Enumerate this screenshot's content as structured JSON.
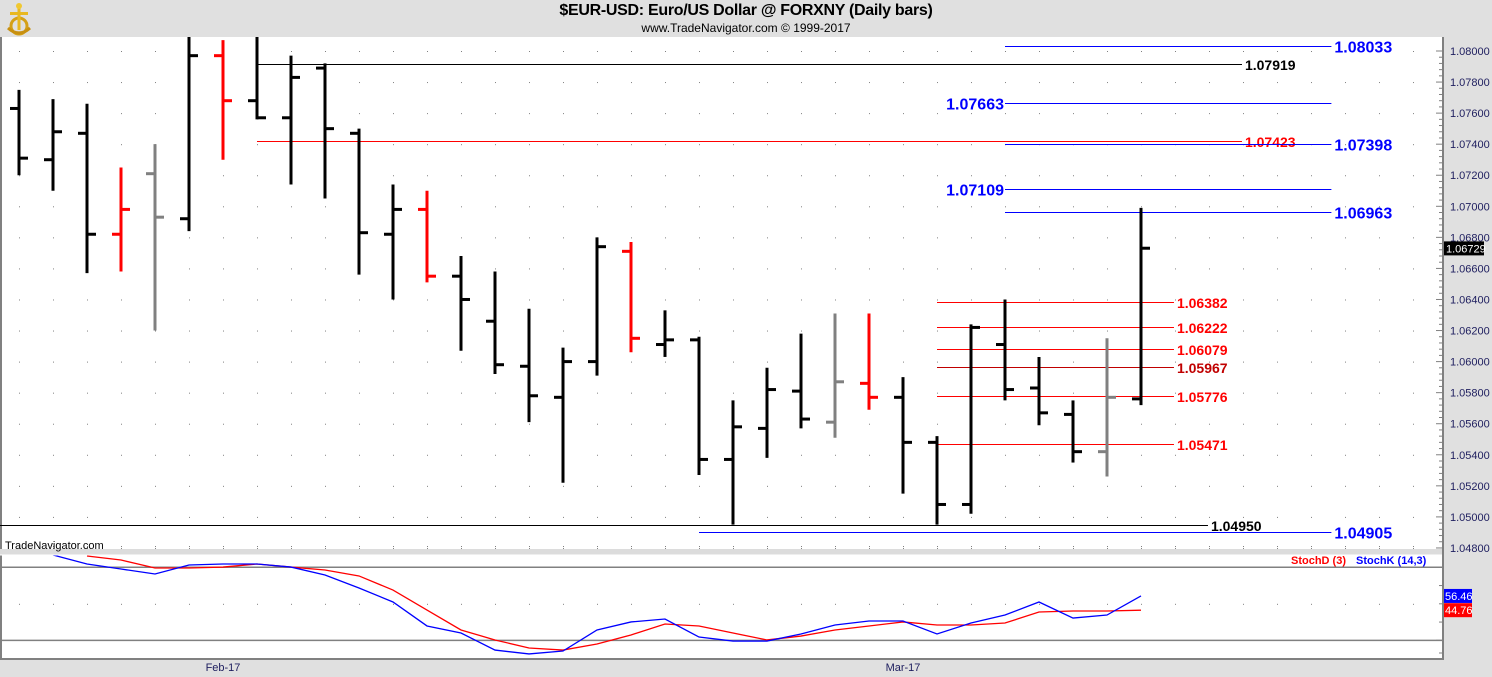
{
  "header": {
    "title": "$EUR-USD:  Euro/US Dollar @ FORXNY  (Daily bars)",
    "subtitle": "www.TradeNavigator.com © 1999-2017",
    "logo_icon": "gold-ship-wheel-anchor-logo"
  },
  "watermark": "TradeNavigator.com",
  "colors": {
    "up": "#000000",
    "red": "#ff0000",
    "gray": "#808080",
    "blue": "#0000ff",
    "stochK": "#0000ff",
    "stochD": "#ff0000"
  },
  "chart_data": [
    {
      "type": "ohlc",
      "title": "$EUR-USD:  Euro/US Dollar @ FORXNY  (Daily bars)",
      "ylim": [
        1.0475,
        1.081
      ],
      "y_ticks": [
        "1.08000",
        "1.07800",
        "1.07600",
        "1.07400",
        "1.07200",
        "1.07000",
        "1.06800",
        "1.06600",
        "1.06400",
        "1.06200",
        "1.06000",
        "1.05800",
        "1.05600",
        "1.05400",
        "1.05200",
        "1.05000",
        "1.04800"
      ],
      "x_labels": [
        {
          "text": "Feb-17",
          "at_bar": 6
        },
        {
          "text": "Mar-17",
          "at_bar": 26
        }
      ],
      "last_price": "1.06729",
      "grid": "dotted",
      "bars": [
        {
          "o": 1.0763,
          "h": 1.0775,
          "l": 1.072,
          "c": 1.0731,
          "color": "black"
        },
        {
          "o": 1.073,
          "h": 1.0769,
          "l": 1.071,
          "c": 1.0748,
          "color": "black"
        },
        {
          "o": 1.0747,
          "h": 1.0766,
          "l": 1.0657,
          "c": 1.0682,
          "color": "black"
        },
        {
          "o": 1.0682,
          "h": 1.0725,
          "l": 1.0658,
          "c": 1.0698,
          "color": "red"
        },
        {
          "o": 1.0721,
          "h": 1.074,
          "l": 1.062,
          "c": 1.0693,
          "color": "gray"
        },
        {
          "o": 1.0692,
          "h": 1.081,
          "l": 1.0684,
          "c": 1.0797,
          "color": "black"
        },
        {
          "o": 1.0797,
          "h": 1.0807,
          "l": 1.073,
          "c": 1.0768,
          "color": "red"
        },
        {
          "o": 1.0768,
          "h": 1.081,
          "l": 1.0756,
          "c": 1.0757,
          "color": "black"
        },
        {
          "o": 1.0757,
          "h": 1.0797,
          "l": 1.0714,
          "c": 1.0783,
          "color": "black"
        },
        {
          "o": 1.0789,
          "h": 1.0792,
          "l": 1.0705,
          "c": 1.075,
          "color": "black"
        },
        {
          "o": 1.0747,
          "h": 1.075,
          "l": 1.0656,
          "c": 1.0683,
          "color": "black"
        },
        {
          "o": 1.0682,
          "h": 1.0714,
          "l": 1.064,
          "c": 1.0698,
          "color": "black"
        },
        {
          "o": 1.0698,
          "h": 1.071,
          "l": 1.0651,
          "c": 1.0655,
          "color": "red"
        },
        {
          "o": 1.0655,
          "h": 1.0668,
          "l": 1.0607,
          "c": 1.064,
          "color": "black"
        },
        {
          "o": 1.0626,
          "h": 1.0658,
          "l": 1.0592,
          "c": 1.0598,
          "color": "black"
        },
        {
          "o": 1.0597,
          "h": 1.0634,
          "l": 1.0561,
          "c": 1.0578,
          "color": "black"
        },
        {
          "o": 1.0577,
          "h": 1.0609,
          "l": 1.0522,
          "c": 1.06,
          "color": "black"
        },
        {
          "o": 1.06,
          "h": 1.068,
          "l": 1.0591,
          "c": 1.0674,
          "color": "black"
        },
        {
          "o": 1.0671,
          "h": 1.0677,
          "l": 1.0606,
          "c": 1.0615,
          "color": "red"
        },
        {
          "o": 1.0611,
          "h": 1.0633,
          "l": 1.0603,
          "c": 1.0614,
          "color": "black"
        },
        {
          "o": 1.0614,
          "h": 1.0616,
          "l": 1.0527,
          "c": 1.0537,
          "color": "black"
        },
        {
          "o": 1.0537,
          "h": 1.0575,
          "l": 1.0495,
          "c": 1.0558,
          "color": "black"
        },
        {
          "o": 1.0557,
          "h": 1.0596,
          "l": 1.0538,
          "c": 1.0582,
          "color": "black"
        },
        {
          "o": 1.0581,
          "h": 1.0618,
          "l": 1.0557,
          "c": 1.0563,
          "color": "black"
        },
        {
          "o": 1.0561,
          "h": 1.0631,
          "l": 1.0551,
          "c": 1.0587,
          "color": "gray"
        },
        {
          "o": 1.0586,
          "h": 1.0631,
          "l": 1.0569,
          "c": 1.0577,
          "color": "red"
        },
        {
          "o": 1.0577,
          "h": 1.059,
          "l": 1.0515,
          "c": 1.0548,
          "color": "black"
        },
        {
          "o": 1.0548,
          "h": 1.0552,
          "l": 1.0495,
          "c": 1.0508,
          "color": "black"
        },
        {
          "o": 1.0508,
          "h": 1.0624,
          "l": 1.0502,
          "c": 1.0622,
          "color": "black"
        },
        {
          "o": 1.0611,
          "h": 1.064,
          "l": 1.0575,
          "c": 1.0582,
          "color": "black"
        },
        {
          "o": 1.0583,
          "h": 1.0603,
          "l": 1.0559,
          "c": 1.0567,
          "color": "black"
        },
        {
          "o": 1.0566,
          "h": 1.0575,
          "l": 1.0535,
          "c": 1.0542,
          "color": "black"
        },
        {
          "o": 1.0542,
          "h": 1.0615,
          "l": 1.0526,
          "c": 1.0577,
          "color": "gray"
        },
        {
          "o": 1.0576,
          "h": 1.0699,
          "l": 1.0572,
          "c": 1.0673,
          "color": "black"
        }
      ],
      "levels": [
        {
          "label": "1.08033",
          "price": 1.08033,
          "color": "blue",
          "start_bar": 29,
          "end_bar": 38.6,
          "label_side": "right"
        },
        {
          "label": "1.07919",
          "price": 1.07919,
          "color": "black",
          "start_bar": 7,
          "end_bar": 35.97,
          "label_side": "right"
        },
        {
          "label": "1.07663",
          "price": 1.07663,
          "color": "blue",
          "start_bar": 29,
          "end_bar": 38.6,
          "label_side": "left"
        },
        {
          "label": "1.07423",
          "price": 1.07423,
          "color": "red",
          "start_bar": 7,
          "end_bar": 35.97,
          "label_side": "right"
        },
        {
          "label": "1.07398",
          "price": 1.07398,
          "color": "blue",
          "start_bar": 29,
          "end_bar": 38.6,
          "label_side": "right"
        },
        {
          "label": "1.07109",
          "price": 1.07109,
          "color": "blue",
          "start_bar": 29,
          "end_bar": 38.6,
          "label_side": "left"
        },
        {
          "label": "1.06963",
          "price": 1.06963,
          "color": "blue",
          "start_bar": 29,
          "end_bar": 38.6,
          "label_side": "right"
        },
        {
          "label": "1.06382",
          "price": 1.06382,
          "color": "red",
          "start_bar": 27,
          "end_bar": 33.97,
          "label_side": "right"
        },
        {
          "label": "1.06222",
          "price": 1.06222,
          "color": "red",
          "start_bar": 27,
          "end_bar": 33.97,
          "label_side": "right"
        },
        {
          "label": "1.06079",
          "price": 1.06079,
          "color": "red",
          "start_bar": 27,
          "end_bar": 33.97,
          "label_side": "right"
        },
        {
          "label": "1.05967",
          "price": 1.05967,
          "color": "darkred",
          "start_bar": 27,
          "end_bar": 33.97,
          "label_side": "right"
        },
        {
          "label": "1.05776",
          "price": 1.05776,
          "color": "red",
          "start_bar": 27,
          "end_bar": 33.97,
          "label_side": "right"
        },
        {
          "label": "1.05471",
          "price": 1.05471,
          "color": "red",
          "start_bar": 27,
          "end_bar": 33.97,
          "label_side": "right"
        },
        {
          "label": "1.04950",
          "price": 1.0495,
          "color": "black",
          "start_bar": -0.6,
          "end_bar": 34.97,
          "label_side": "right"
        },
        {
          "label": "1.04905",
          "price": 1.04905,
          "color": "blue",
          "start_bar": 20,
          "end_bar": 38.6,
          "label_side": "right"
        }
      ]
    },
    {
      "type": "line",
      "ylim": [
        0,
        100
      ],
      "reference_lines": [
        80,
        20
      ],
      "legend": "top-right",
      "series": [
        {
          "name": "StochD (3)",
          "color": "red",
          "start_bar": 2,
          "last_label": "44.76",
          "values": [
            89.3,
            86.0,
            79.4,
            79.4,
            80.2,
            82.7,
            80.2,
            77.8,
            72.9,
            61.3,
            44.9,
            28.5,
            20.3,
            13.7,
            12.0,
            17.0,
            24.4,
            33.4,
            31.8,
            26.0,
            20.3,
            23.5,
            28.5,
            31.8,
            35.1,
            32.6,
            32.6,
            34.2,
            43.3,
            44.1,
            44.1,
            44.76
          ]
        },
        {
          "name": "StochK (14,3)",
          "color": "blue",
          "start_bar": 1,
          "last_label": "56.46",
          "values": [
            90.1,
            82.7,
            78.6,
            74.5,
            81.9,
            82.7,
            82.7,
            80.2,
            73.7,
            63.0,
            51.5,
            31.8,
            26.0,
            12.0,
            8.8,
            11.2,
            28.5,
            35.1,
            37.5,
            22.7,
            19.4,
            19.4,
            25.2,
            32.6,
            35.9,
            35.9,
            25.2,
            34.2,
            40.8,
            51.5,
            38.3,
            40.8,
            56.46
          ]
        }
      ]
    }
  ]
}
